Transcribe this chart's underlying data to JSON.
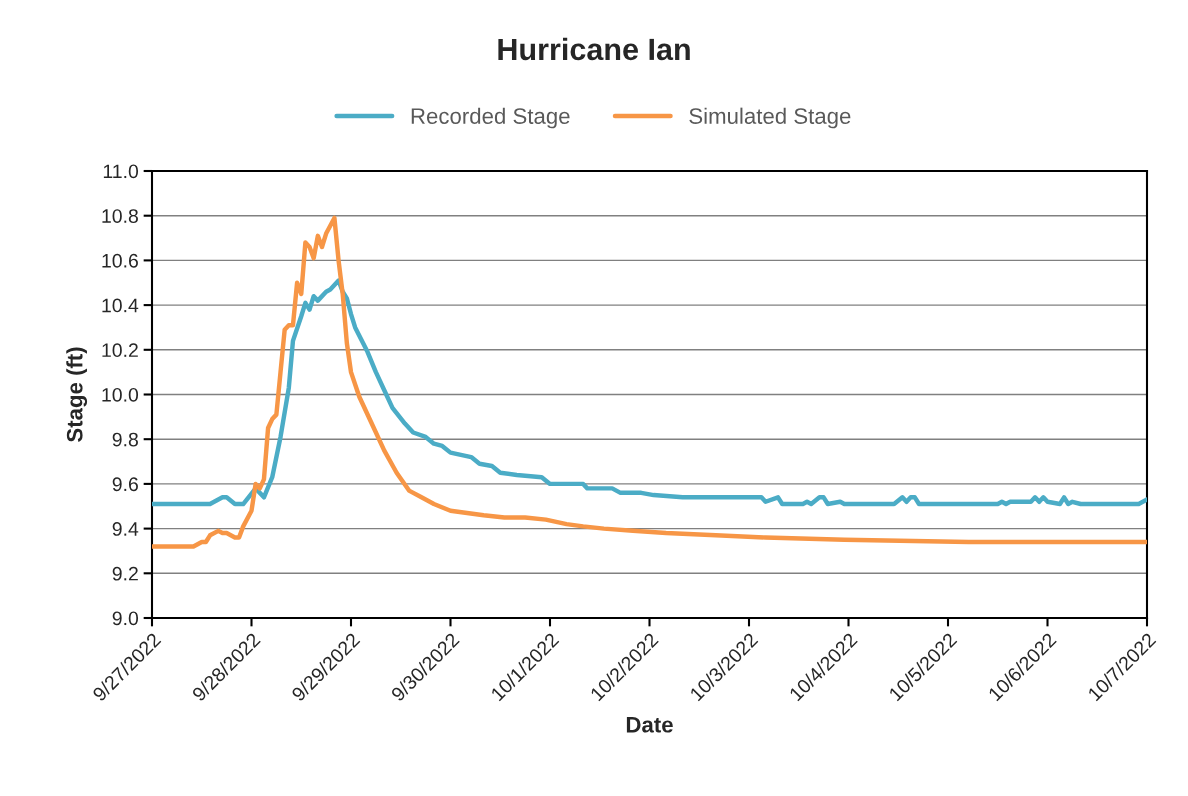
{
  "chart_data": {
    "type": "line",
    "title": "Hurricane Ian",
    "xlabel": "Date",
    "ylabel": "Stage (ft)",
    "xlim": [
      "2022-09-27",
      "2022-10-07"
    ],
    "xticks": [
      {
        "value": "2022-09-27",
        "label": "9/27/2022"
      },
      {
        "value": "2022-09-28",
        "label": "9/28/2022"
      },
      {
        "value": "2022-09-29",
        "label": "9/29/2022"
      },
      {
        "value": "2022-09-30",
        "label": "9/30/2022"
      },
      {
        "value": "2022-10-01",
        "label": "10/1/2022"
      },
      {
        "value": "2022-10-02",
        "label": "10/2/2022"
      },
      {
        "value": "2022-10-03",
        "label": "10/3/2022"
      },
      {
        "value": "2022-10-04",
        "label": "10/4/2022"
      },
      {
        "value": "2022-10-05",
        "label": "10/5/2022"
      },
      {
        "value": "2022-10-06",
        "label": "10/6/2022"
      },
      {
        "value": "2022-10-07",
        "label": "10/7/2022"
      }
    ],
    "ylim": [
      9.0,
      11.0
    ],
    "yticks": [
      {
        "value": 9.0,
        "label": "9.0"
      },
      {
        "value": 9.2,
        "label": "9.2"
      },
      {
        "value": 9.4,
        "label": "9.4"
      },
      {
        "value": 9.6,
        "label": "9.6"
      },
      {
        "value": 9.8,
        "label": "9.8"
      },
      {
        "value": 10.0,
        "label": "10.0"
      },
      {
        "value": 10.2,
        "label": "10.2"
      },
      {
        "value": 10.4,
        "label": "10.4"
      },
      {
        "value": 10.6,
        "label": "10.6"
      },
      {
        "value": 10.8,
        "label": "10.8"
      },
      {
        "value": 11.0,
        "label": "11.0"
      }
    ],
    "grid": "y",
    "legend": "top",
    "marker": "none",
    "line_style": "solid",
    "series": [
      {
        "name": "Recorded Stage",
        "color": "#4bacc6",
        "x": [
          "2022-09-27T00:00",
          "2022-09-27T14:00",
          "2022-09-27T17:00",
          "2022-09-27T18:00",
          "2022-09-27T20:00",
          "2022-09-27T22:00",
          "2022-09-28T01:00",
          "2022-09-28T03:00",
          "2022-09-28T05:00",
          "2022-09-28T07:00",
          "2022-09-28T09:00",
          "2022-09-28T10:00",
          "2022-09-28T12:00",
          "2022-09-28T13:00",
          "2022-09-28T14:00",
          "2022-09-28T15:00",
          "2022-09-28T16:00",
          "2022-09-28T18:00",
          "2022-09-28T19:00",
          "2022-09-28T21:00",
          "2022-09-28T22:00",
          "2022-09-28T23:00",
          "2022-09-29T00:00",
          "2022-09-29T01:00",
          "2022-09-29T04:00",
          "2022-09-29T06:00",
          "2022-09-29T08:00",
          "2022-09-29T10:00",
          "2022-09-29T13:00",
          "2022-09-29T15:00",
          "2022-09-29T18:00",
          "2022-09-29T20:00",
          "2022-09-29T22:00",
          "2022-09-30T00:00",
          "2022-09-30T05:00",
          "2022-09-30T07:00",
          "2022-09-30T10:00",
          "2022-09-30T12:00",
          "2022-09-30T16:00",
          "2022-09-30T22:00",
          "2022-10-01T00:00",
          "2022-10-01T08:00",
          "2022-10-01T09:00",
          "2022-10-01T15:00",
          "2022-10-01T17:00",
          "2022-10-01T22:00",
          "2022-10-02T01:00",
          "2022-10-02T08:00",
          "2022-10-03T03:00",
          "2022-10-03T04:00",
          "2022-10-03T07:00",
          "2022-10-03T08:00",
          "2022-10-03T13:00",
          "2022-10-03T14:00",
          "2022-10-03T15:00",
          "2022-10-03T17:00",
          "2022-10-03T18:00",
          "2022-10-03T19:00",
          "2022-10-03T22:00",
          "2022-10-03T23:00",
          "2022-10-04T11:00",
          "2022-10-04T13:00",
          "2022-10-04T14:00",
          "2022-10-04T15:00",
          "2022-10-04T16:00",
          "2022-10-04T17:00",
          "2022-10-05T12:00",
          "2022-10-05T13:00",
          "2022-10-05T14:00",
          "2022-10-05T15:00",
          "2022-10-05T20:00",
          "2022-10-05T21:00",
          "2022-10-05T22:00",
          "2022-10-05T23:00",
          "2022-10-06T00:00",
          "2022-10-06T03:00",
          "2022-10-06T04:00",
          "2022-10-06T05:00",
          "2022-10-06T06:00",
          "2022-10-06T08:00",
          "2022-10-06T22:00",
          "2022-10-07T00:00"
        ],
        "values": [
          9.51,
          9.51,
          9.54,
          9.54,
          9.51,
          9.51,
          9.58,
          9.54,
          9.63,
          9.81,
          10.03,
          10.24,
          10.35,
          10.41,
          10.38,
          10.44,
          10.42,
          10.46,
          10.47,
          10.51,
          10.46,
          10.43,
          10.36,
          10.3,
          10.19,
          10.1,
          10.02,
          9.94,
          9.87,
          9.83,
          9.81,
          9.78,
          9.77,
          9.74,
          9.72,
          9.69,
          9.68,
          9.65,
          9.64,
          9.63,
          9.6,
          9.6,
          9.58,
          9.58,
          9.56,
          9.56,
          9.55,
          9.54,
          9.54,
          9.52,
          9.54,
          9.51,
          9.51,
          9.52,
          9.51,
          9.54,
          9.54,
          9.51,
          9.52,
          9.51,
          9.51,
          9.54,
          9.52,
          9.54,
          9.54,
          9.51,
          9.51,
          9.52,
          9.51,
          9.52,
          9.52,
          9.54,
          9.52,
          9.54,
          9.52,
          9.51,
          9.54,
          9.51,
          9.52,
          9.51,
          9.51,
          9.53
        ]
      },
      {
        "name": "Simulated Stage",
        "color": "#f79646",
        "x": [
          "2022-09-27T00:00",
          "2022-09-27T10:00",
          "2022-09-27T12:00",
          "2022-09-27T13:00",
          "2022-09-27T14:00",
          "2022-09-27T16:00",
          "2022-09-27T17:00",
          "2022-09-27T18:00",
          "2022-09-27T20:00",
          "2022-09-27T21:00",
          "2022-09-27T22:00",
          "2022-09-28T00:00",
          "2022-09-28T01:00",
          "2022-09-28T02:00",
          "2022-09-28T03:00",
          "2022-09-28T04:00",
          "2022-09-28T05:00",
          "2022-09-28T06:00",
          "2022-09-28T07:00",
          "2022-09-28T08:00",
          "2022-09-28T09:00",
          "2022-09-28T10:00",
          "2022-09-28T11:00",
          "2022-09-28T12:00",
          "2022-09-28T13:00",
          "2022-09-28T14:00",
          "2022-09-28T15:00",
          "2022-09-28T16:00",
          "2022-09-28T17:00",
          "2022-09-28T18:00",
          "2022-09-28T20:00",
          "2022-09-28T21:00",
          "2022-09-28T22:00",
          "2022-09-28T23:00",
          "2022-09-29T00:00",
          "2022-09-29T02:00",
          "2022-09-29T05:00",
          "2022-09-29T08:00",
          "2022-09-29T11:00",
          "2022-09-29T14:00",
          "2022-09-29T17:00",
          "2022-09-29T20:00",
          "2022-09-30T00:00",
          "2022-09-30T04:00",
          "2022-09-30T08:00",
          "2022-09-30T13:00",
          "2022-09-30T18:00",
          "2022-09-30T23:00",
          "2022-10-01T04:00",
          "2022-10-01T08:00",
          "2022-10-01T13:00",
          "2022-10-01T20:00",
          "2022-10-02T04:00",
          "2022-10-02T16:00",
          "2022-10-03T04:00",
          "2022-10-03T23:00",
          "2022-10-05T05:00",
          "2022-10-07T00:00"
        ],
        "values": [
          9.32,
          9.32,
          9.34,
          9.34,
          9.37,
          9.39,
          9.38,
          9.38,
          9.36,
          9.36,
          9.41,
          9.48,
          9.6,
          9.58,
          9.62,
          9.85,
          9.89,
          9.91,
          10.1,
          10.29,
          10.31,
          10.31,
          10.5,
          10.45,
          10.68,
          10.66,
          10.61,
          10.71,
          10.66,
          10.72,
          10.79,
          10.6,
          10.45,
          10.23,
          10.1,
          9.99,
          9.87,
          9.75,
          9.65,
          9.57,
          9.54,
          9.51,
          9.48,
          9.47,
          9.46,
          9.45,
          9.45,
          9.44,
          9.42,
          9.41,
          9.4,
          9.39,
          9.38,
          9.37,
          9.36,
          9.35,
          9.34,
          9.34
        ]
      }
    ]
  }
}
